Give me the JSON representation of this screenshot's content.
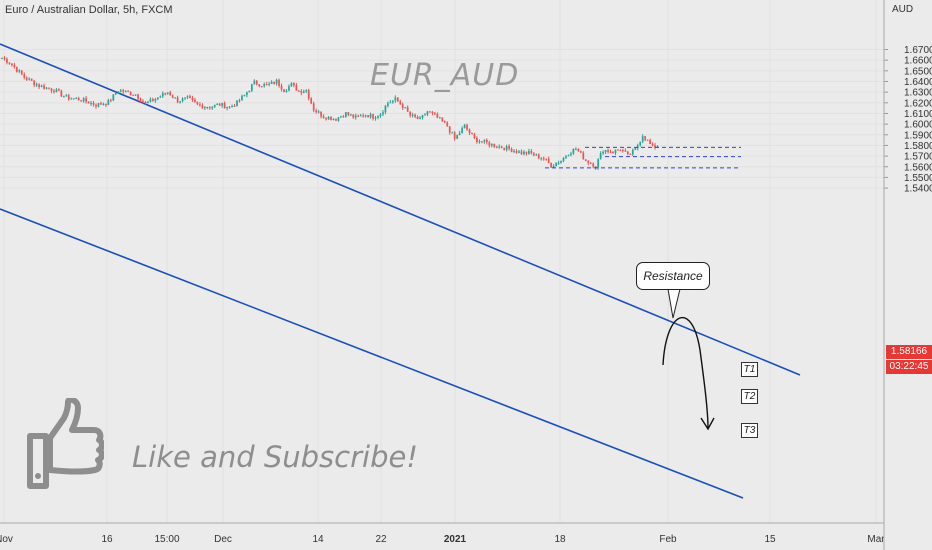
{
  "header": {
    "title": "Euro / Australian Dollar, 5h, FXCM"
  },
  "watermark": "EUR_AUD",
  "cta_text": "Like and Subscribe!",
  "callout_text": "Resistance",
  "targets": [
    {
      "label": "T1",
      "price": 1.5782
    },
    {
      "label": "T2",
      "price": 1.5695
    },
    {
      "label": "T3",
      "price": 1.5589
    }
  ],
  "price_axis": {
    "currency": "AUD",
    "ticks": [
      "1.67000",
      "1.66000",
      "1.65000",
      "1.64000",
      "1.63000",
      "1.62000",
      "1.61000",
      "1.60000",
      "1.59000",
      "1.58000",
      "1.57000",
      "1.56000",
      "1.55000",
      "1.54000"
    ],
    "last_price": "1.58166",
    "countdown": "03:22:45"
  },
  "time_axis": {
    "ticks": [
      "Nov",
      "16",
      "15:00",
      "Dec",
      "14",
      "22",
      "2021",
      "18",
      "Feb",
      "15",
      "Mar"
    ]
  },
  "colors": {
    "up": "#26a69a",
    "down": "#ef5350",
    "channel": "#1a4fbf",
    "target_line": "#3344cc",
    "price_tag": "#e53935"
  },
  "chart_data": {
    "type": "candlestick",
    "title": "Euro / Australian Dollar, 5h, FXCM",
    "ylim": [
      1.5325,
      1.6925
    ],
    "close_path": [
      [
        1.662,
        3
      ],
      [
        1.658,
        6
      ],
      [
        1.644,
        6
      ],
      [
        1.636,
        6
      ],
      [
        1.632,
        5
      ],
      [
        1.625,
        6
      ],
      [
        1.623,
        6
      ],
      [
        1.618,
        5
      ],
      [
        1.6205,
        4
      ],
      [
        1.632,
        7
      ],
      [
        1.628,
        4
      ],
      [
        1.619,
        5
      ],
      [
        1.625,
        4
      ],
      [
        1.63,
        4
      ],
      [
        1.622,
        4
      ],
      [
        1.624,
        4
      ],
      [
        1.618,
        5
      ],
      [
        1.616,
        4
      ],
      [
        1.6185,
        4
      ],
      [
        1.616,
        3
      ],
      [
        1.62,
        3
      ],
      [
        1.627,
        4
      ],
      [
        1.639,
        5
      ],
      [
        1.636,
        4
      ],
      [
        1.64,
        3
      ],
      [
        1.632,
        3
      ],
      [
        1.637,
        3
      ],
      [
        1.631,
        3
      ],
      [
        1.632,
        3
      ],
      [
        1.614,
        4
      ],
      [
        1.607,
        5
      ],
      [
        1.605,
        4
      ],
      [
        1.61,
        4
      ],
      [
        1.606,
        4
      ],
      [
        1.609,
        3
      ],
      [
        1.607,
        3
      ],
      [
        1.61,
        3
      ],
      [
        1.62,
        3
      ],
      [
        1.623,
        3
      ],
      [
        1.617,
        3
      ],
      [
        1.608,
        4
      ],
      [
        1.604,
        3
      ],
      [
        1.612,
        4
      ],
      [
        1.606,
        4
      ],
      [
        1.598,
        3
      ],
      [
        1.586,
        4
      ],
      [
        1.598,
        4
      ],
      [
        1.586,
        4
      ],
      [
        1.583,
        4
      ],
      [
        1.58,
        4
      ],
      [
        1.578,
        3
      ],
      [
        1.576,
        4
      ],
      [
        1.573,
        3
      ],
      [
        1.573,
        3
      ],
      [
        1.57,
        3
      ],
      [
        1.568,
        3
      ],
      [
        1.561,
        4
      ],
      [
        1.566,
        3
      ],
      [
        1.573,
        3
      ],
      [
        1.577,
        4
      ],
      [
        1.566,
        4
      ],
      [
        1.561,
        3
      ],
      [
        1.576,
        4
      ],
      [
        1.574,
        3
      ],
      [
        1.577,
        3
      ],
      [
        1.57,
        3
      ],
      [
        1.576,
        3
      ],
      [
        1.59,
        4
      ],
      [
        1.578,
        3
      ],
      [
        1.581,
        3
      ]
    ]
  }
}
